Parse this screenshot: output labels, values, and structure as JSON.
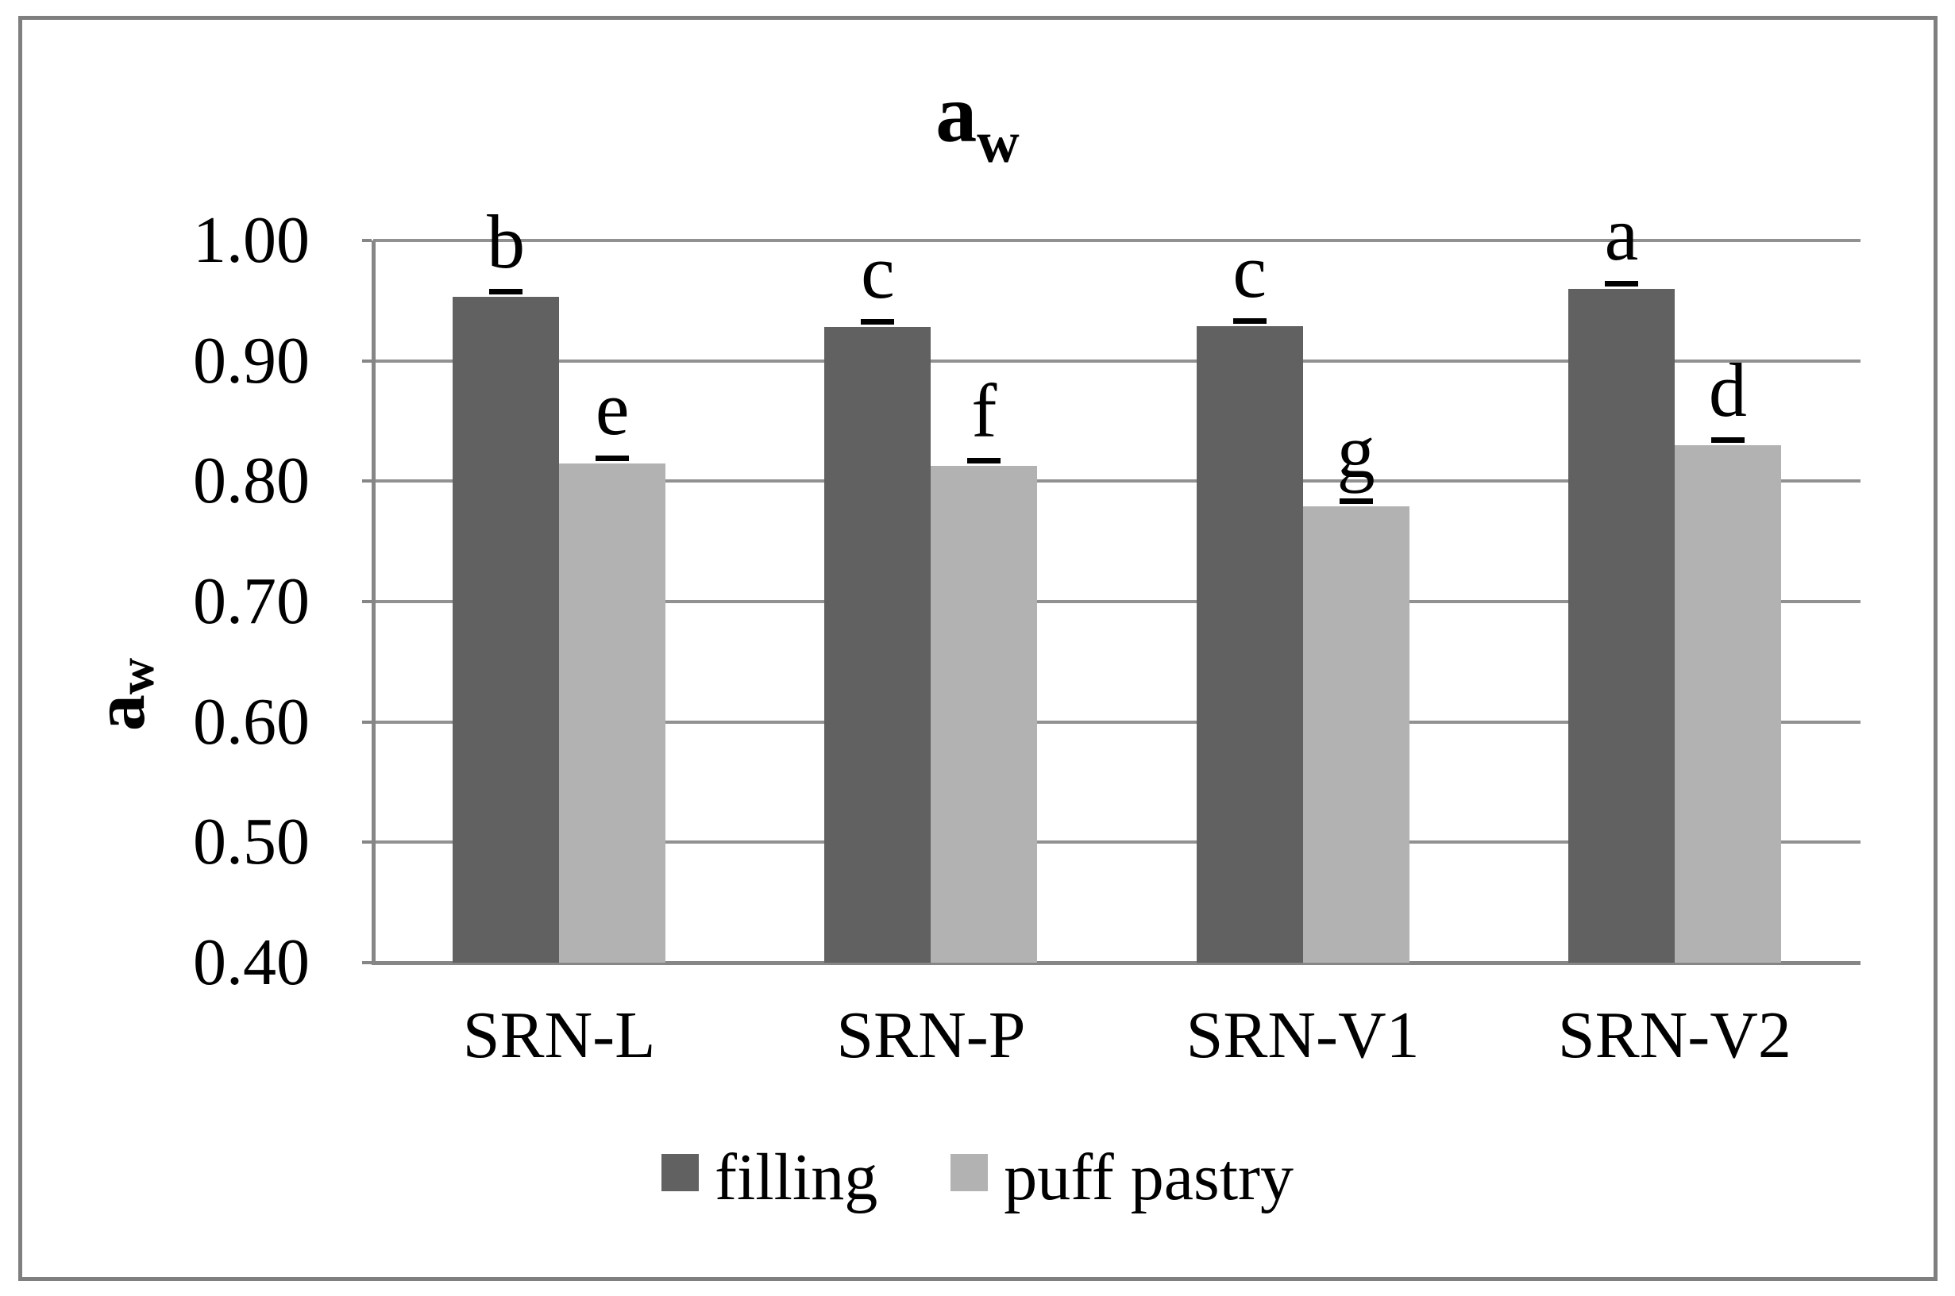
{
  "title": {
    "base": "a",
    "sub": "w"
  },
  "y_axis_title": {
    "base": "a",
    "sub": "w"
  },
  "colors": {
    "filling": "#616161",
    "puff_pastry": "#b2b2b2",
    "gridline": "#919191",
    "axis": "#868686",
    "frame_border": "#7f7f7f",
    "error_cap": "#000000"
  },
  "chart_data": {
    "type": "bar",
    "title": "aw",
    "ylabel": "aw",
    "xlabel": "",
    "categories": [
      "SRN-L",
      "SRN-P",
      "SRN-V1",
      "SRN-V2"
    ],
    "series": [
      {
        "name": "filling",
        "color": "#616161",
        "values": [
          0.953,
          0.928,
          0.929,
          0.96
        ],
        "letters": [
          "b",
          "c",
          "c",
          "a"
        ]
      },
      {
        "name": "puff pastry",
        "color": "#b2b2b2",
        "values": [
          0.815,
          0.813,
          0.779,
          0.83
        ],
        "letters": [
          "e",
          "f",
          "g",
          "d"
        ]
      }
    ],
    "error_cap_value": 0.004,
    "yticks": [
      "1.00",
      "0.90",
      "0.80",
      "0.70",
      "0.60",
      "0.50",
      "0.40"
    ],
    "ylim": [
      0.4,
      1.0
    ],
    "grid": true,
    "legend_position": "bottom"
  }
}
